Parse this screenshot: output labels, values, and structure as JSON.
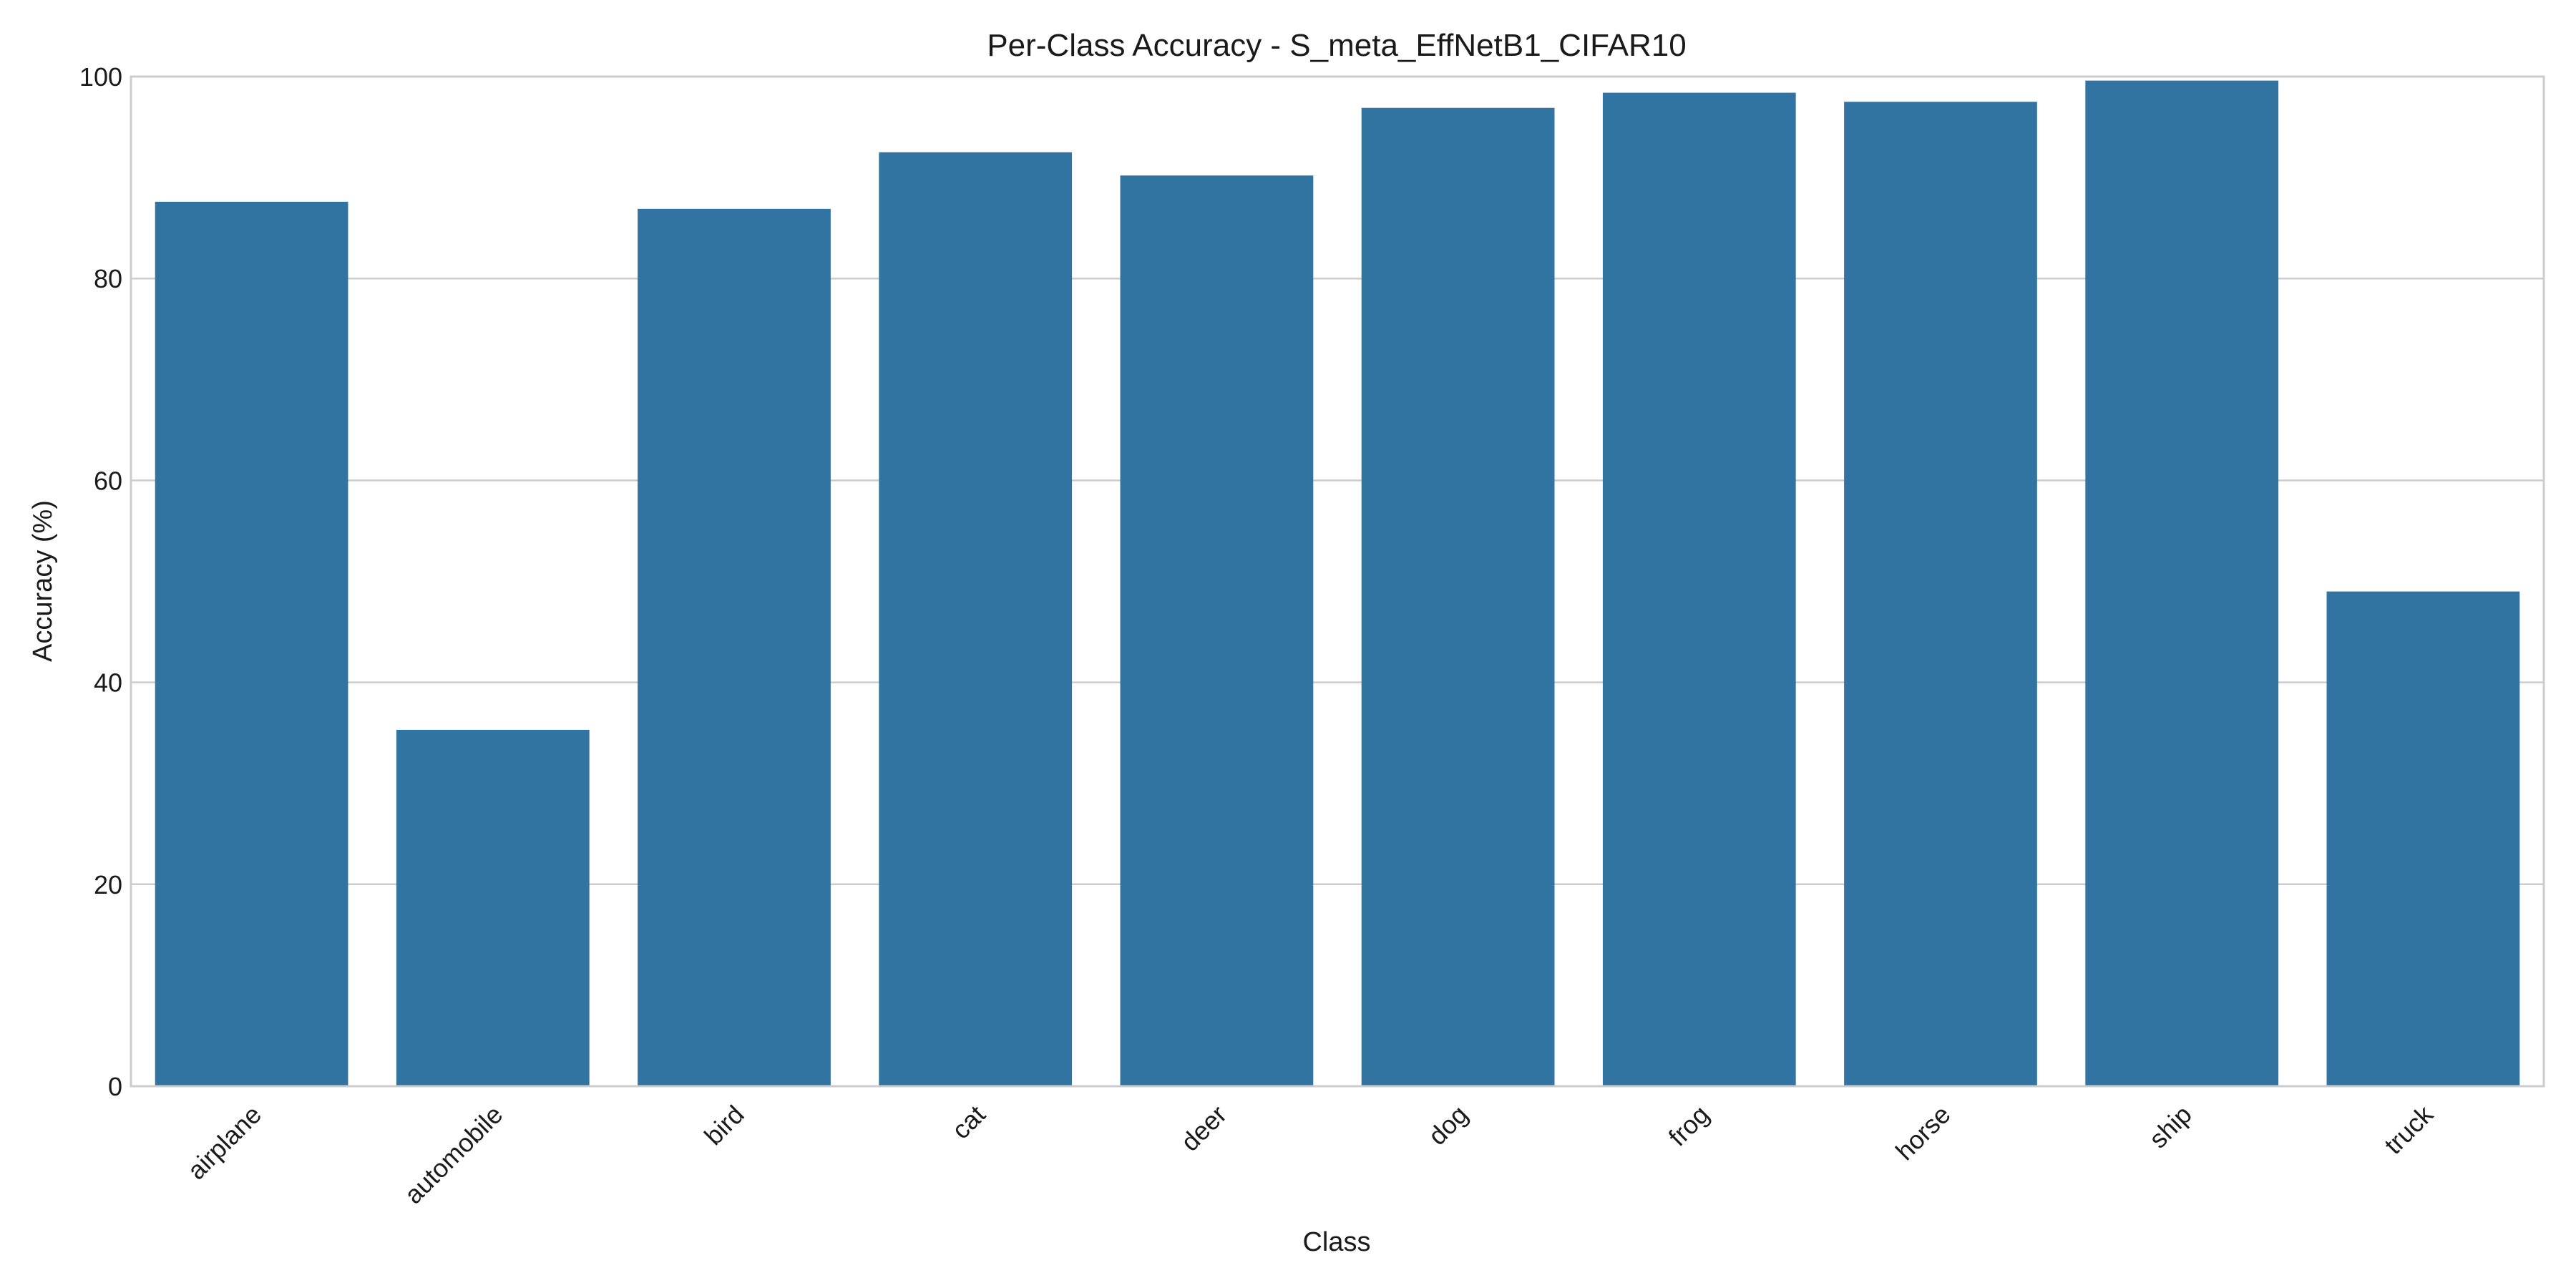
{
  "chart_data": {
    "type": "bar",
    "title": "Per-Class Accuracy - S_meta_EffNetB1_CIFAR10",
    "xlabel": "Class",
    "ylabel": "Accuracy (%)",
    "categories": [
      "airplane",
      "automobile",
      "bird",
      "cat",
      "deer",
      "dog",
      "frog",
      "horse",
      "ship",
      "truck"
    ],
    "values": [
      87.6,
      35.3,
      86.9,
      92.5,
      90.2,
      96.9,
      98.4,
      97.5,
      99.6,
      49.0
    ],
    "ylim": [
      0,
      100
    ],
    "yticks": [
      0,
      20,
      40,
      60,
      80,
      100
    ],
    "grid": "y",
    "legend": "none",
    "bar_color": "#3274a1"
  }
}
